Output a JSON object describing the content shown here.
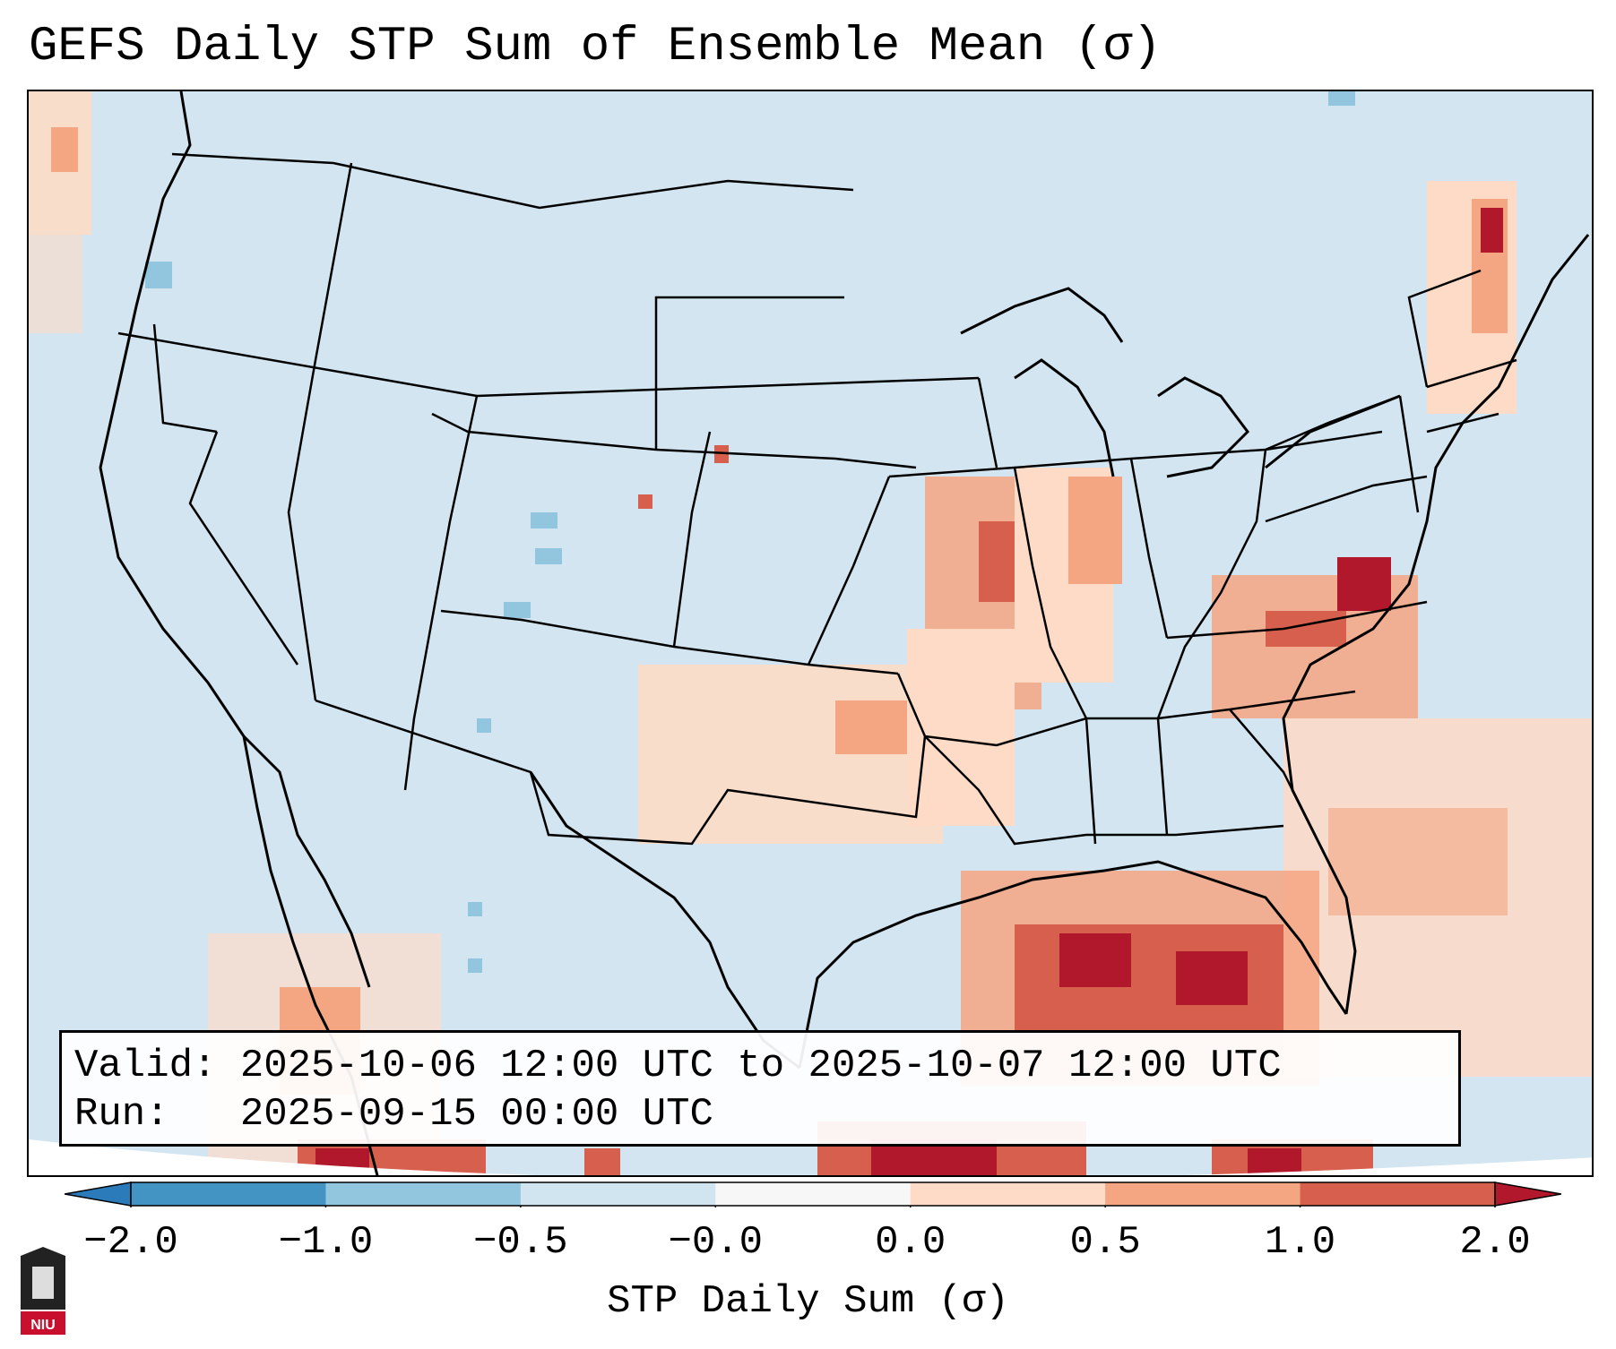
{
  "title": "GEFS Daily STP Sum of Ensemble Mean (σ)",
  "info": {
    "valid_label": "Valid:",
    "valid_value": "2025-10-06 12:00 UTC to 2025-10-07 12:00 UTC",
    "run_label": "Run:",
    "run_value": "2025-09-15 00:00 UTC"
  },
  "colorbar": {
    "label": "STP Daily Sum (σ)",
    "ticks": [
      "−2.0",
      "−1.0",
      "−0.5",
      "−0.0",
      "0.0",
      "0.5",
      "1.0",
      "2.0"
    ],
    "colors": [
      "#2b7bba",
      "#4393c3",
      "#92c5de",
      "#d1e5f0",
      "#f7f7f7",
      "#fddbc7",
      "#f4a582",
      "#d6604d",
      "#b2182b"
    ],
    "extend": "both"
  },
  "colors": {
    "ocean_background": "#d3e5f0",
    "land_neutral": "#d1e5f0",
    "light_red": "#fddbc7",
    "mid_red": "#f4a582",
    "dark_red": "#d6604d",
    "deep_red": "#b2182b",
    "light_blue": "#92c5de"
  },
  "logo": {
    "text": "NIU",
    "color": "#c8102e"
  }
}
